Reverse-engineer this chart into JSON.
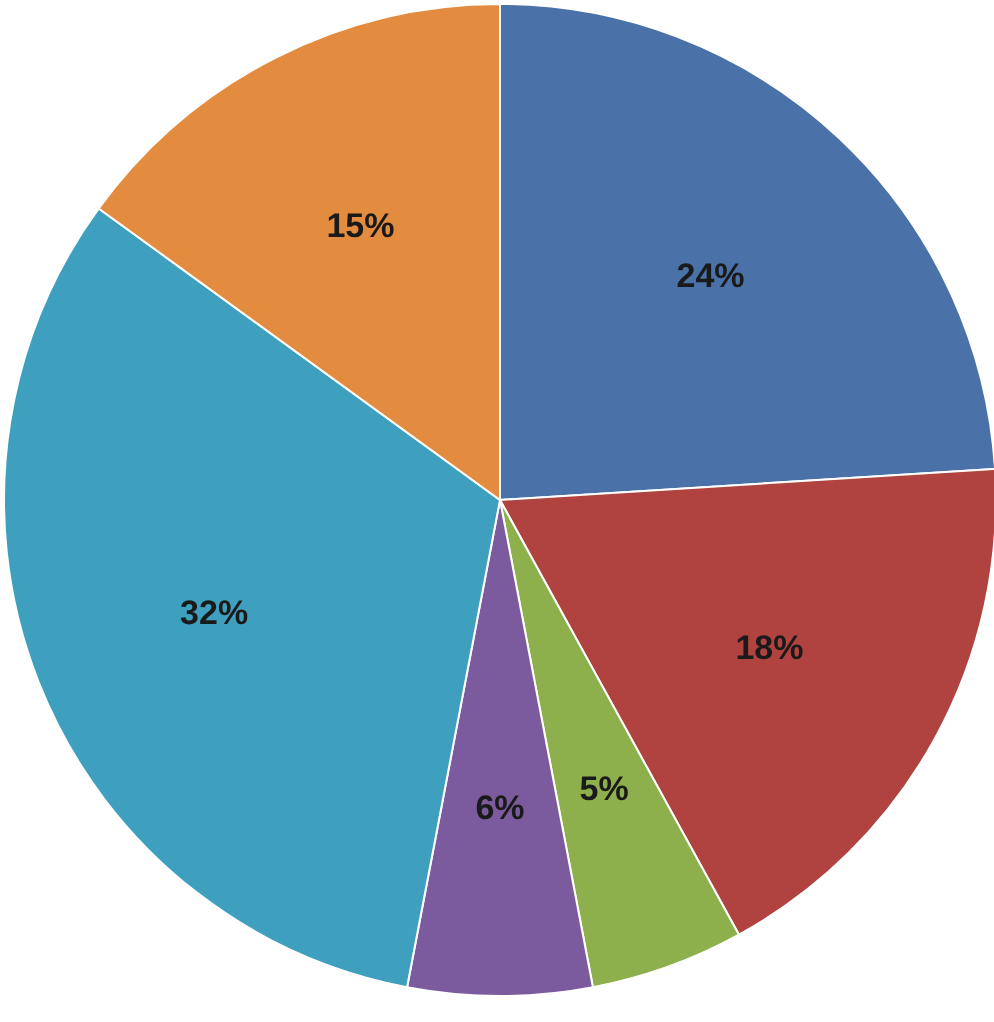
{
  "chart_data": {
    "type": "pie",
    "categories": [
      null,
      null,
      null,
      null,
      null,
      null
    ],
    "values": [
      24,
      18,
      5,
      6,
      32,
      15
    ],
    "colors": [
      "#4a72a8",
      "#b0433f",
      "#8db04c",
      "#7b5b9d",
      "#3f9fbf",
      "#e38b3e"
    ],
    "value_labels": [
      "24%",
      "18%",
      "5%",
      "6%",
      "32%",
      "15%"
    ]
  }
}
